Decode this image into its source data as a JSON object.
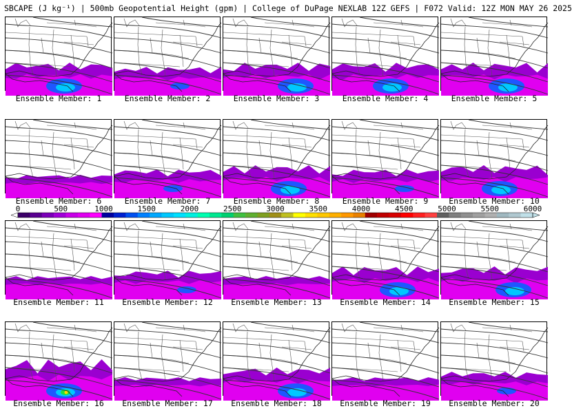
{
  "header": {
    "title": "SBCAPE (J kg⁻¹) | 500mb Geopotential Height (gpm) | College of DuPage NEXLAB 12Z GEFS | F072 Valid: 12Z MON MAY 26 2025"
  },
  "members": [
    {
      "label": "Ensemble Member: 1",
      "cape": "strong"
    },
    {
      "label": "Ensemble Member: 2",
      "cape": "moderate"
    },
    {
      "label": "Ensemble Member: 3",
      "cape": "strong"
    },
    {
      "label": "Ensemble Member: 4",
      "cape": "strong"
    },
    {
      "label": "Ensemble Member: 5",
      "cape": "strong"
    },
    {
      "label": "Ensemble Member: 6",
      "cape": "weak"
    },
    {
      "label": "Ensemble Member: 7",
      "cape": "moderate"
    },
    {
      "label": "Ensemble Member: 8",
      "cape": "strong"
    },
    {
      "label": "Ensemble Member: 9",
      "cape": "moderate"
    },
    {
      "label": "Ensemble Member: 10",
      "cape": "strong"
    },
    {
      "label": "Ensemble Member: 11",
      "cape": "weak"
    },
    {
      "label": "Ensemble Member: 12",
      "cape": "moderate"
    },
    {
      "label": "Ensemble Member: 13",
      "cape": "weak"
    },
    {
      "label": "Ensemble Member: 14",
      "cape": "strong"
    },
    {
      "label": "Ensemble Member: 15",
      "cape": "strong"
    },
    {
      "label": "Ensemble Member: 16",
      "cape": "extreme"
    },
    {
      "label": "Ensemble Member: 17",
      "cape": "weak"
    },
    {
      "label": "Ensemble Member: 18",
      "cape": "strong"
    },
    {
      "label": "Ensemble Member: 19",
      "cape": "weak"
    },
    {
      "label": "Ensemble Member: 20",
      "cape": "moderate"
    }
  ],
  "colorbar": {
    "ticks": [
      "0",
      "500",
      "1000",
      "1500",
      "2000",
      "2500",
      "3000",
      "3500",
      "4000",
      "4500",
      "5000",
      "5500",
      "6000"
    ],
    "min": 0,
    "max": 6000,
    "colors": [
      "#3c0068",
      "#5a0090",
      "#7b00b8",
      "#a000d8",
      "#c800e8",
      "#e000f0",
      "#ff00ff",
      "#0000a0",
      "#0020d0",
      "#0050f0",
      "#0080ff",
      "#00a8ff",
      "#00c8ff",
      "#00e0ff",
      "#00f0e0",
      "#00ffb0",
      "#00e890",
      "#00d070",
      "#40c040",
      "#60b030",
      "#80a020",
      "#a09018",
      "#c0c020",
      "#ffff00",
      "#ffe000",
      "#ffc800",
      "#ffb000",
      "#ff9800",
      "#e88000",
      "#a00000",
      "#c00000",
      "#d80000",
      "#ff0000",
      "#ff2020",
      "#ff4040",
      "#606060",
      "#808080",
      "#909090",
      "#a0a0a0",
      "#b0b0b0",
      "#a0b8c0",
      "#b0c8d0",
      "#c0e0e8"
    ]
  }
}
